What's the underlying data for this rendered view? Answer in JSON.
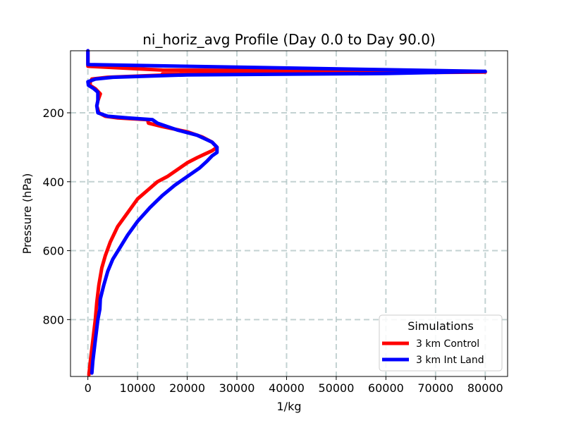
{
  "chart_data": {
    "type": "line",
    "title": "ni_horiz_avg Profile (Day 0.0 to Day 90.0)",
    "xlabel": "1/kg",
    "ylabel": "Pressure (hPa)",
    "xlim": [
      -3500,
      84500
    ],
    "ylim": [
      965,
      20
    ],
    "y_inverted": true,
    "grid": true,
    "x_ticks": [
      0,
      10000,
      20000,
      30000,
      40000,
      50000,
      60000,
      70000,
      80000
    ],
    "x_tick_labels": [
      "0",
      "10000",
      "20000",
      "30000",
      "40000",
      "50000",
      "60000",
      "70000",
      "80000"
    ],
    "y_ticks": [
      200,
      400,
      600,
      800
    ],
    "y_tick_labels": [
      "200",
      "400",
      "600",
      "800"
    ],
    "legend": {
      "title": "Simulations",
      "placement": "lower-right"
    },
    "series": [
      {
        "name": "3 km Control",
        "color": "#ff0000",
        "points": [
          [
            0,
            20
          ],
          [
            0,
            65
          ],
          [
            15000,
            76
          ],
          [
            55000,
            78
          ],
          [
            80000,
            82
          ],
          [
            15000,
            87
          ],
          [
            16000,
            90
          ],
          [
            4000,
            97
          ],
          [
            800,
            102
          ],
          [
            500,
            110
          ],
          [
            400,
            120
          ],
          [
            1500,
            130
          ],
          [
            2500,
            145
          ],
          [
            2000,
            165
          ],
          [
            1800,
            180
          ],
          [
            2200,
            200
          ],
          [
            3500,
            210
          ],
          [
            6000,
            215
          ],
          [
            12000,
            220
          ],
          [
            12200,
            230
          ],
          [
            15000,
            240
          ],
          [
            20000,
            255
          ],
          [
            23000,
            270
          ],
          [
            25000,
            285
          ],
          [
            26000,
            300
          ],
          [
            25000,
            310
          ],
          [
            23500,
            320
          ],
          [
            22000,
            330
          ],
          [
            20000,
            345
          ],
          [
            18000,
            365
          ],
          [
            16000,
            385
          ],
          [
            14000,
            400
          ],
          [
            12000,
            425
          ],
          [
            10000,
            450
          ],
          [
            8000,
            490
          ],
          [
            6000,
            530
          ],
          [
            4500,
            575
          ],
          [
            3500,
            615
          ],
          [
            2800,
            650
          ],
          [
            2200,
            700
          ],
          [
            1800,
            750
          ],
          [
            1500,
            800
          ],
          [
            1000,
            860
          ],
          [
            500,
            920
          ],
          [
            200,
            960
          ]
        ]
      },
      {
        "name": "3 km Int Land",
        "color": "#0000ff",
        "points": [
          [
            0,
            20
          ],
          [
            0,
            60
          ],
          [
            60000,
            75
          ],
          [
            80000,
            80
          ],
          [
            60000,
            86
          ],
          [
            20000,
            90
          ],
          [
            5000,
            97
          ],
          [
            1500,
            102
          ],
          [
            0,
            110
          ],
          [
            100,
            120
          ],
          [
            1200,
            130
          ],
          [
            2000,
            140
          ],
          [
            2000,
            165
          ],
          [
            1800,
            180
          ],
          [
            2000,
            200
          ],
          [
            4000,
            210
          ],
          [
            8000,
            215
          ],
          [
            13000,
            220
          ],
          [
            14000,
            230
          ],
          [
            18000,
            250
          ],
          [
            22000,
            265
          ],
          [
            25000,
            285
          ],
          [
            26000,
            300
          ],
          [
            26000,
            315
          ],
          [
            25000,
            325
          ],
          [
            24000,
            340
          ],
          [
            22500,
            360
          ],
          [
            20000,
            385
          ],
          [
            17500,
            410
          ],
          [
            15000,
            440
          ],
          [
            12500,
            475
          ],
          [
            10000,
            515
          ],
          [
            8000,
            555
          ],
          [
            6500,
            590
          ],
          [
            5000,
            625
          ],
          [
            4000,
            660
          ],
          [
            3200,
            700
          ],
          [
            2500,
            740
          ],
          [
            2400,
            770
          ],
          [
            2000,
            800
          ],
          [
            1500,
            860
          ],
          [
            1000,
            920
          ],
          [
            800,
            955
          ]
        ]
      }
    ]
  }
}
